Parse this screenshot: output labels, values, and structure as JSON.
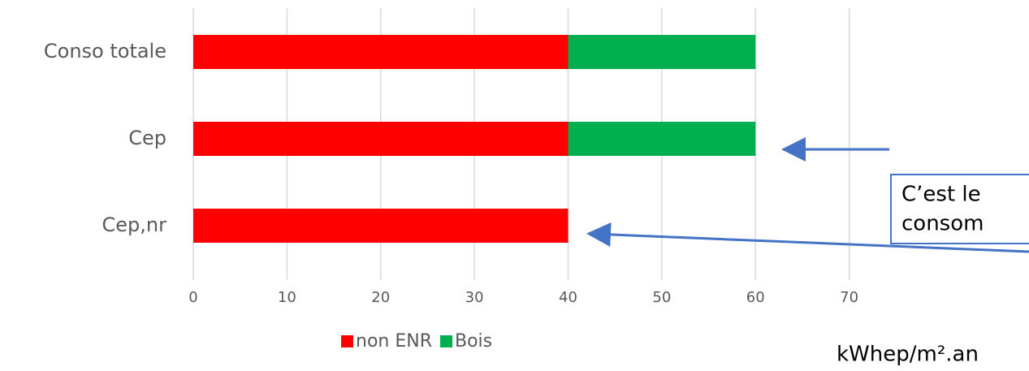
{
  "chart_data": {
    "type": "bar",
    "orientation": "horizontal",
    "stacked": true,
    "categories": [
      "Conso totale",
      "Cep",
      "Cep,nr"
    ],
    "series": [
      {
        "name": "non ENR",
        "color": "#ff0000",
        "values": [
          40,
          40,
          40
        ]
      },
      {
        "name": "Bois",
        "color": "#00b050",
        "values": [
          20,
          20,
          0
        ]
      }
    ],
    "xlim": [
      0,
      80
    ],
    "xticks": [
      0,
      10,
      20,
      30,
      40,
      50,
      60,
      70
    ],
    "grid": true,
    "legend": "bottom",
    "x_label": "kWhep/m².an",
    "annotations": [
      "C’est le",
      "consom"
    ]
  }
}
